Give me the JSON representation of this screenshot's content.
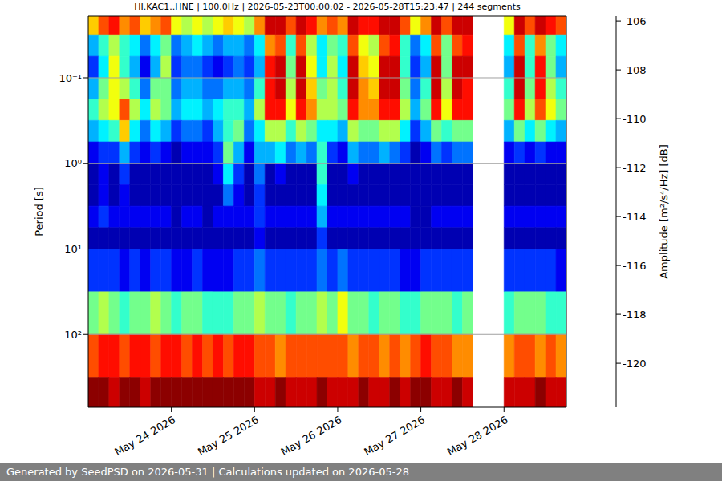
{
  "chart_data": {
    "type": "heatmap",
    "title": "HI.KAC1..HNE | 100.0Hz | 2026-05-23T00:00:02 - 2026-05-28T15:23:47 | 244 segments",
    "ylabel": "Period [s]",
    "footer": "Generated by SeedPSD on 2026-05-31 | Calculations updated on 2026-05-28",
    "log": "y",
    "grid": true,
    "xlim": [
      23,
      28.75
    ],
    "xticks": [
      {
        "value": 24,
        "label": "May 24 2026"
      },
      {
        "value": 25,
        "label": "May 25 2026"
      },
      {
        "value": 26,
        "label": "May 26 2026"
      },
      {
        "value": 27,
        "label": "May 27 2026"
      },
      {
        "value": 28,
        "label": "May 28 2026"
      }
    ],
    "ylim": [
      0.019,
      708
    ],
    "yticks": [
      {
        "value": 0.1,
        "label": "10⁻¹"
      },
      {
        "value": 1,
        "label": "10⁰"
      },
      {
        "value": 10,
        "label": "10¹"
      },
      {
        "value": 100,
        "label": "10²"
      }
    ],
    "x_bins": [
      23,
      23.125,
      23.25,
      23.375,
      23.5,
      23.625,
      23.75,
      23.875,
      24,
      24.125,
      24.25,
      24.375,
      24.5,
      24.625,
      24.75,
      24.875,
      25,
      25.125,
      25.25,
      25.375,
      25.5,
      25.625,
      25.75,
      25.875,
      26,
      26.125,
      26.25,
      26.375,
      26.5,
      26.625,
      26.75,
      26.875,
      27,
      27.125,
      27.25,
      27.375,
      27.5,
      27.625,
      27.75,
      27.875,
      28,
      28.125,
      28.25,
      28.375,
      28.5,
      28.625,
      28.75
    ],
    "y_bins": [
      0.019,
      0.032,
      0.056,
      0.1,
      0.178,
      0.316,
      0.562,
      1,
      1.78,
      3.16,
      5.62,
      10,
      31.6,
      100,
      316,
      708
    ],
    "cells": [
      [
        -111,
        -109,
        -108,
        -110,
        -109,
        -111,
        -110,
        -109,
        -112,
        -113,
        -112,
        -113,
        -112,
        -111,
        -112,
        -113,
        -110,
        -107,
        -107,
        -109,
        -107,
        -108,
        -110,
        -109,
        -110,
        -107,
        -108,
        -108,
        -107,
        -107,
        -109,
        -112,
        -110,
        -107,
        -109,
        -107,
        -107,
        null,
        null,
        null,
        -112,
        -107,
        -109,
        -107,
        -108,
        -109
      ],
      [
        -117,
        -115,
        -113,
        -115,
        -116,
        -118,
        -116,
        -114,
        -118,
        -117,
        -116,
        -117,
        -118,
        -117,
        -117,
        -118,
        -116,
        -110,
        -109,
        -115,
        -109,
        -113,
        -116,
        -114,
        -115,
        -109,
        -112,
        -113,
        -109,
        -108,
        -115,
        -118,
        -116,
        -109,
        -114,
        -109,
        -108,
        null,
        null,
        null,
        -116,
        -109,
        -115,
        -110,
        -114,
        -116
      ],
      [
        -119,
        -116,
        -112,
        -115,
        -117,
        -120,
        -117,
        -113,
        -119,
        -118,
        -118,
        -119,
        -120,
        -119,
        -118,
        -119,
        -117,
        -108,
        -107,
        -114,
        -107,
        -112,
        -116,
        -113,
        -116,
        -107,
        -111,
        -112,
        -107,
        -107,
        -115,
        -119,
        -117,
        -107,
        -114,
        -107,
        -107,
        null,
        null,
        null,
        -117,
        -107,
        -115,
        -108,
        -114,
        -117
      ],
      [
        -117,
        -114,
        -112,
        -113,
        -115,
        -118,
        -114,
        -114,
        -118,
        -117,
        -117,
        -118,
        -118,
        -117,
        -117,
        -118,
        -115,
        -108,
        -107,
        -113,
        -107,
        -111,
        -114,
        -113,
        -115,
        -107,
        -110,
        -111,
        -107,
        -107,
        -114,
        -118,
        -115,
        -107,
        -113,
        -107,
        -108,
        null,
        null,
        null,
        -115,
        -107,
        -114,
        -108,
        -113,
        -115
      ],
      [
        -115,
        -113,
        -112,
        -109,
        -113,
        -116,
        -113,
        -114,
        -117,
        -116,
        -116,
        -117,
        -116,
        -115,
        -115,
        -117,
        -113,
        -108,
        -108,
        -112,
        -108,
        -110,
        -113,
        -113,
        -114,
        -108,
        -110,
        -110,
        -108,
        -108,
        -113,
        -117,
        -114,
        -108,
        -112,
        -108,
        -108,
        null,
        null,
        null,
        -114,
        -108,
        -113,
        -109,
        -112,
        -114
      ],
      [
        -117,
        -116,
        -115,
        -111,
        -116,
        -118,
        -116,
        -117,
        -119,
        -118,
        -118,
        -119,
        -117,
        -115,
        -114,
        -118,
        -116,
        -113,
        -113,
        -115,
        -113,
        -114,
        -116,
        -116,
        -117,
        -113,
        -114,
        -114,
        -113,
        -113,
        -116,
        -119,
        -117,
        -114,
        -115,
        -114,
        -114,
        null,
        null,
        null,
        -117,
        -114,
        -116,
        -114,
        -116,
        -117
      ],
      [
        -120,
        -119,
        -119,
        -117,
        -119,
        -120,
        -119,
        -120,
        -121,
        -120,
        -120,
        -120,
        -119,
        -114,
        -117,
        -120,
        -117,
        -117,
        -116,
        -118,
        -117,
        -118,
        -115,
        -119,
        -120,
        -117,
        -118,
        -118,
        -117,
        -118,
        -119,
        -121,
        -120,
        -118,
        -119,
        -118,
        -118,
        null,
        null,
        null,
        -120,
        -119,
        -120,
        -119,
        -120,
        -120
      ],
      [
        -121,
        -120,
        -121,
        -119,
        -121,
        -121,
        -121,
        -121,
        -121,
        -121,
        -121,
        -121,
        -120,
        -116,
        -119,
        -121,
        -118,
        -121,
        -120,
        -121,
        -121,
        -121,
        -115,
        -121,
        -121,
        -120,
        -121,
        -121,
        -121,
        -121,
        -121,
        -121,
        -121,
        -121,
        -121,
        -121,
        -121,
        null,
        null,
        null,
        -121,
        -121,
        -121,
        -121,
        -121,
        -121
      ],
      [
        -121,
        -120,
        -121,
        -120,
        -121,
        -121,
        -121,
        -121,
        -121,
        -121,
        -121,
        -121,
        -121,
        -118,
        -120,
        -121,
        -119,
        -121,
        -121,
        -121,
        -121,
        -121,
        -116,
        -121,
        -121,
        -121,
        -121,
        -121,
        -121,
        -121,
        -121,
        -121,
        -121,
        -121,
        -121,
        -121,
        -121,
        null,
        null,
        null,
        -121,
        -121,
        -121,
        -121,
        -121,
        -121
      ],
      [
        -120,
        -119,
        -120,
        -120,
        -120,
        -120,
        -120,
        -120,
        -121,
        -120,
        -120,
        -121,
        -120,
        -120,
        -120,
        -120,
        -119,
        -120,
        -120,
        -120,
        -120,
        -120,
        -117,
        -120,
        -120,
        -120,
        -120,
        -120,
        -120,
        -120,
        -120,
        -121,
        -121,
        -120,
        -120,
        -120,
        -120,
        null,
        null,
        null,
        -120,
        -120,
        -120,
        -120,
        -120,
        -120
      ],
      [
        -121,
        -121,
        -121,
        -121,
        -121,
        -121,
        -121,
        -121,
        -121,
        -121,
        -121,
        -121,
        -121,
        -121,
        -121,
        -121,
        -120,
        -121,
        -121,
        -121,
        -121,
        -121,
        -119,
        -121,
        -121,
        -121,
        -121,
        -121,
        -121,
        -121,
        -121,
        -121,
        -121,
        -121,
        -121,
        -121,
        -121,
        null,
        null,
        null,
        -121,
        -121,
        -121,
        -121,
        -121,
        -121
      ],
      [
        -119,
        -119,
        -119,
        -120,
        -119,
        -120,
        -119,
        -119,
        -120,
        -120,
        -119,
        -120,
        -120,
        -120,
        -119,
        -119,
        -118,
        -119,
        -119,
        -119,
        -119,
        -119,
        -118,
        -119,
        -118,
        -119,
        -119,
        -119,
        -119,
        -119,
        -120,
        -120,
        -119,
        -119,
        -119,
        -119,
        -119,
        null,
        null,
        null,
        -119,
        -119,
        -119,
        -119,
        -119,
        -120
      ],
      [
        -114,
        -113,
        -114,
        -115,
        -114,
        -114,
        -113,
        -114,
        -115,
        -114,
        -114,
        -115,
        -115,
        -115,
        -114,
        -114,
        -113,
        -114,
        -114,
        -115,
        -114,
        -114,
        -113,
        -114,
        -112,
        -114,
        -114,
        -115,
        -114,
        -114,
        -115,
        -115,
        -114,
        -114,
        -114,
        -115,
        -114,
        null,
        null,
        null,
        -115,
        -114,
        -114,
        -114,
        -115,
        -115
      ],
      [
        -109,
        -108,
        -108,
        -109,
        -108,
        -108,
        -109,
        -108,
        -108,
        -109,
        -108,
        -109,
        -108,
        -109,
        -108,
        -108,
        -109,
        -109,
        -110,
        -109,
        -109,
        -109,
        -109,
        -109,
        -109,
        -110,
        -109,
        -109,
        -110,
        -109,
        -110,
        -109,
        -108,
        -109,
        -109,
        -110,
        -110,
        null,
        null,
        null,
        -110,
        -109,
        -109,
        -110,
        -109,
        -110
      ],
      [
        -106,
        -106,
        -107,
        -106,
        -106,
        -107,
        -106,
        -106,
        -106,
        -106,
        -106,
        -106,
        -106,
        -106,
        -106,
        -106,
        -107,
        -107,
        -106,
        -107,
        -107,
        -107,
        -106,
        -107,
        -107,
        -107,
        -106,
        -107,
        -107,
        -106,
        -107,
        -106,
        -106,
        -107,
        -107,
        -106,
        -107,
        null,
        null,
        null,
        -107,
        -107,
        -107,
        -106,
        -107,
        -107
      ]
    ],
    "colorbar_label": "Amplitude [m²/s⁴/Hz] [dB]",
    "colorbar_range": [
      -121.8,
      -105.8
    ],
    "colorbar_ticks": [
      -106,
      -108,
      -110,
      -112,
      -114,
      -116,
      -118,
      -120
    ]
  }
}
